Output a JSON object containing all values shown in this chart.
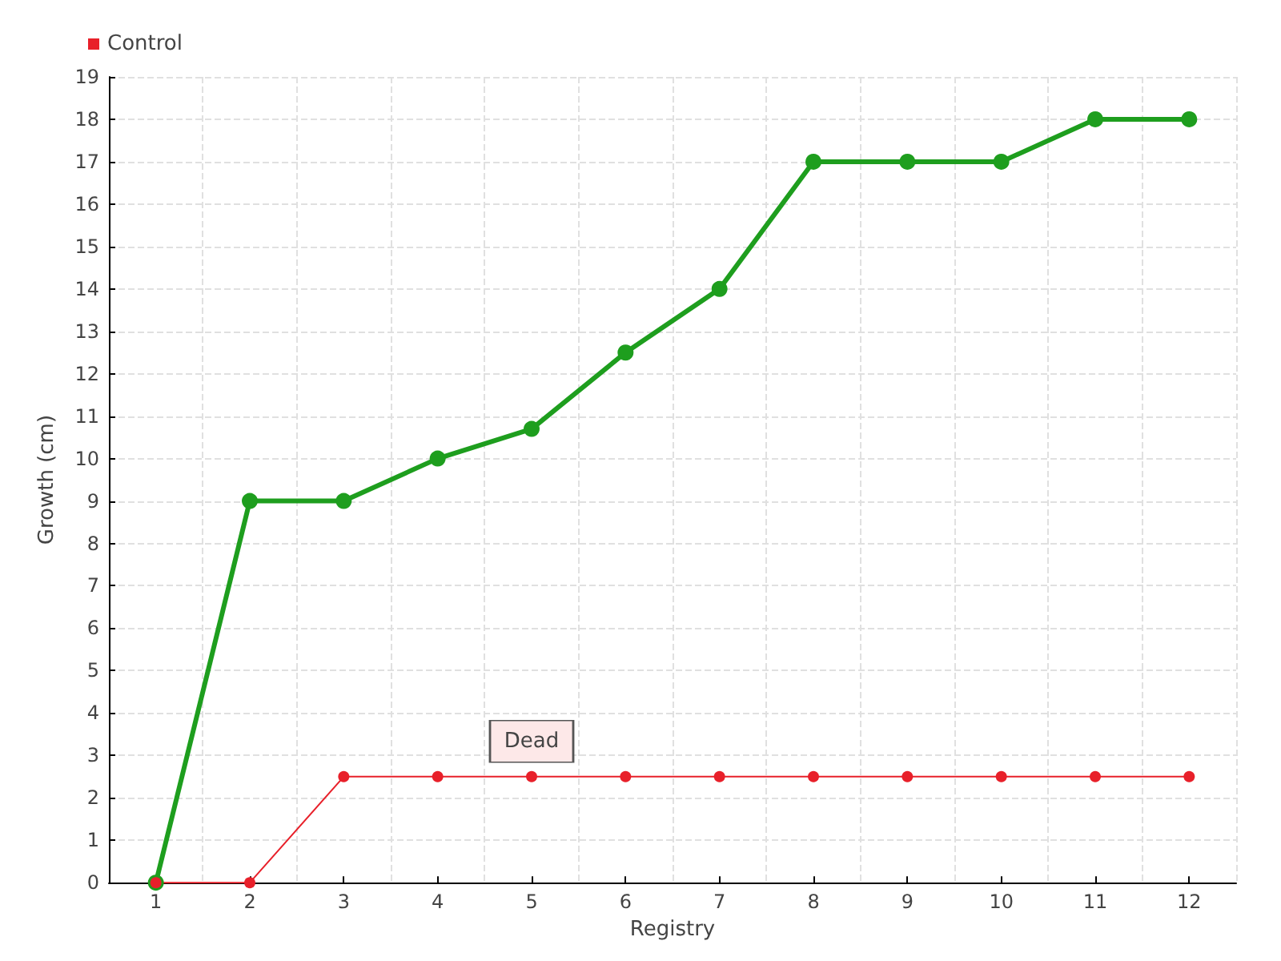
{
  "chart_data": {
    "type": "line",
    "xlabel": "Registry",
    "ylabel": "Growth (cm)",
    "categories": [
      "1",
      "2",
      "3",
      "4",
      "5",
      "6",
      "7",
      "8",
      "9",
      "10",
      "11",
      "12"
    ],
    "series": [
      {
        "color": "#1e9e1e",
        "values": [
          0,
          9,
          9,
          10,
          10.7,
          12.5,
          14,
          17,
          17,
          17,
          18,
          18
        ]
      },
      {
        "name": "Control",
        "color": "#e8202a",
        "values": [
          0,
          0,
          2.5,
          2.5,
          2.5,
          2.5,
          2.5,
          2.5,
          2.5,
          2.5,
          2.5,
          2.5
        ]
      }
    ],
    "ylim": [
      0,
      19
    ],
    "yticks": [
      0,
      1,
      2,
      3,
      4,
      5,
      6,
      7,
      8,
      9,
      10,
      11,
      12,
      13,
      14,
      15,
      16,
      17,
      18,
      19
    ],
    "grid": true,
    "legend": "top left",
    "marker": "circle",
    "line_style": "solid",
    "annotations": [
      {
        "text": "Dead",
        "x": "5",
        "y": 2.5
      }
    ]
  }
}
